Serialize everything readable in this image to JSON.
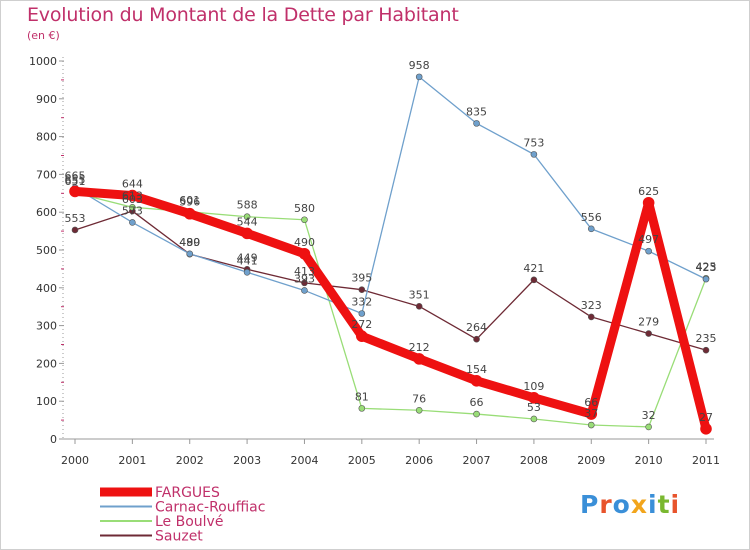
{
  "header": {
    "title": "Evolution du Montant de la Dette par Habitant",
    "subtitle": "(en €)"
  },
  "logo": {
    "text": "Proxiti",
    "letters": [
      {
        "ch": "P",
        "color": "#3a8fd8"
      },
      {
        "ch": "r",
        "color": "#e8542c"
      },
      {
        "ch": "o",
        "color": "#3a8fd8"
      },
      {
        "ch": "x",
        "color": "#f2a51c"
      },
      {
        "ch": "i",
        "color": "#3a8fd8"
      },
      {
        "ch": "t",
        "color": "#7ab830"
      },
      {
        "ch": "i",
        "color": "#e8542c"
      }
    ]
  },
  "chart_data": {
    "type": "line",
    "title": "Evolution du Montant de la Dette par Habitant",
    "subtitle": "(en €)",
    "xlabel": "",
    "ylabel": "",
    "x": [
      2000,
      2001,
      2002,
      2003,
      2004,
      2005,
      2006,
      2007,
      2008,
      2009,
      2010,
      2011
    ],
    "ylim": [
      0,
      1000
    ],
    "yticks": [
      0,
      100,
      200,
      300,
      400,
      500,
      600,
      700,
      800,
      900,
      1000
    ],
    "grid": false,
    "legend": "bottom-left",
    "series": [
      {
        "name": "Sauzet",
        "color": "#6e2a35",
        "width": 1.3,
        "values": [
          553,
          603,
          489,
          449,
          413,
          395,
          351,
          264,
          421,
          323,
          279,
          235
        ]
      },
      {
        "name": "Le Boulvé",
        "color": "#99dd77",
        "width": 1.3,
        "values": [
          651,
          613,
          601,
          588,
          580,
          81,
          76,
          66,
          53,
          37,
          32,
          425
        ]
      },
      {
        "name": "Carnac-Rouffiac",
        "color": "#6fa0cc",
        "width": 1.3,
        "values": [
          665,
          573,
          490,
          441,
          393,
          332,
          958,
          835,
          753,
          556,
          497,
          423
        ]
      },
      {
        "name": "FARGUES",
        "color": "#ee1111",
        "width": 9,
        "values": [
          655,
          644,
          596,
          544,
          490,
          272,
          212,
          154,
          109,
          66,
          625,
          27
        ]
      }
    ],
    "legend_order": [
      "FARGUES",
      "Carnac-Rouffiac",
      "Le Boulvé",
      "Sauzet"
    ]
  }
}
